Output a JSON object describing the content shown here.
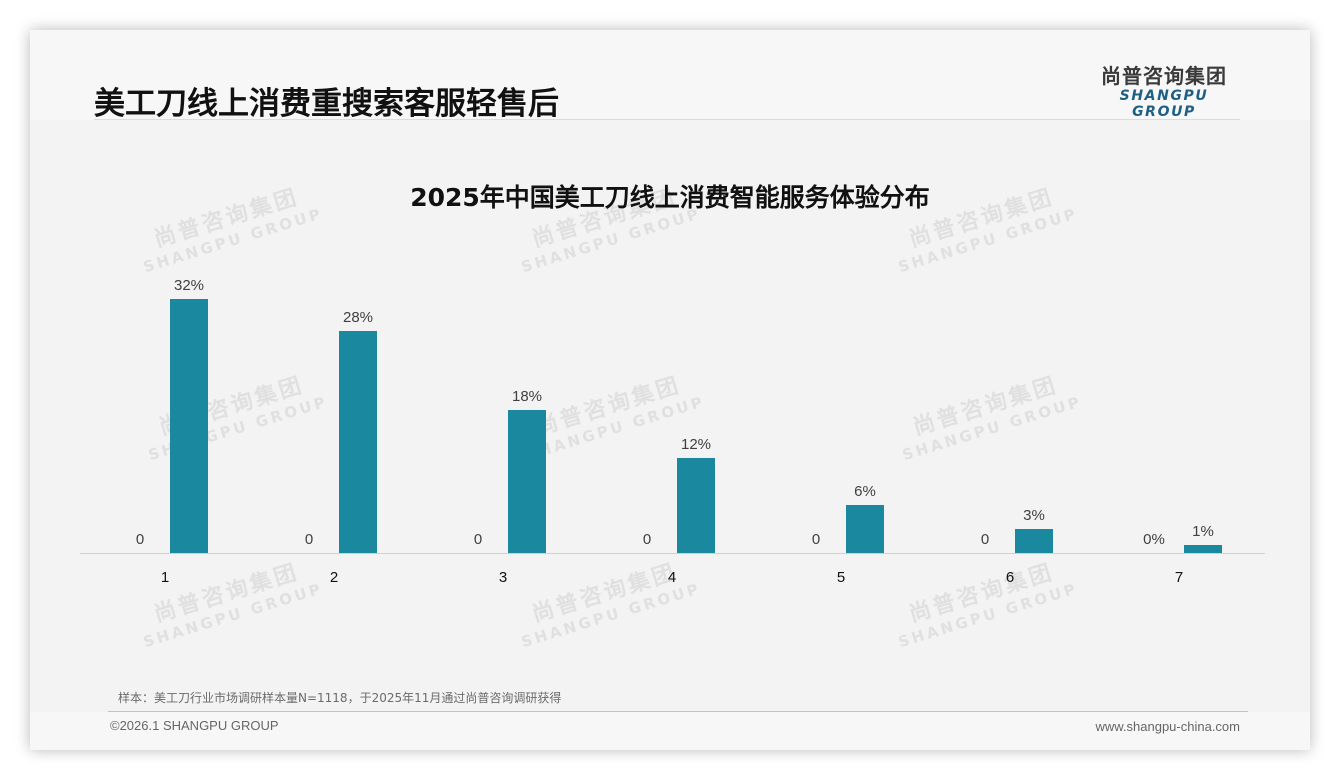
{
  "header": {
    "title": "美工刀线上消费重搜索客服轻售后",
    "logo_cn": "尚普咨询集团",
    "logo_en": "SHANGPU GROUP"
  },
  "watermark": {
    "cn": "尚普咨询集团",
    "en": "SHANGPU GROUP"
  },
  "colors": {
    "bar": "#1a889e",
    "logo_en": "#1f5f86"
  },
  "chart_data": {
    "type": "bar",
    "title": "2025年中国美工刀线上消费智能服务体验分布",
    "categories": [
      "1",
      "2",
      "3",
      "4",
      "5",
      "6",
      "7"
    ],
    "series": [
      {
        "name": "series-1",
        "values": [
          0,
          0,
          0,
          0,
          0,
          0,
          0
        ],
        "labels": [
          "0",
          "0",
          "0",
          "0",
          "0",
          "0",
          "0%"
        ]
      },
      {
        "name": "series-2",
        "values": [
          32,
          28,
          18,
          12,
          6,
          3,
          1
        ],
        "labels": [
          "32%",
          "28%",
          "18%",
          "12%",
          "6%",
          "3%",
          "1%"
        ]
      }
    ],
    "xlabel": "",
    "ylabel": "",
    "ylim": [
      0,
      35
    ],
    "grid": false,
    "legend": "none"
  },
  "footer": {
    "note": "样本：美工刀行业市场调研样本量N=1118，于2025年11月通过尚普咨询调研获得",
    "copyright": "©2026.1 SHANGPU GROUP",
    "website": "www.shangpu-china.com"
  }
}
